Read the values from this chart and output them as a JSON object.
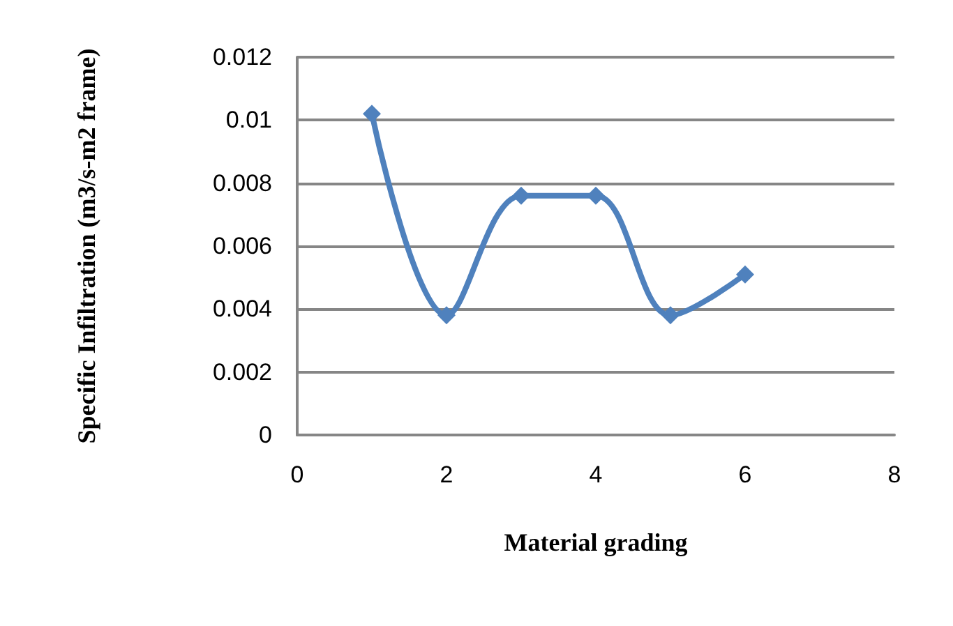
{
  "chart_data": {
    "type": "line",
    "xlabel": "Material grading",
    "ylabel": "Specific Infiltration (m3/s-m2 frame)",
    "x": [
      1,
      2,
      3,
      4,
      5,
      6
    ],
    "series": [
      {
        "color": "#4f81bd",
        "values": [
          0.0102,
          0.0038,
          0.0076,
          0.0076,
          0.0038,
          0.0051
        ]
      }
    ],
    "xlim": [
      0,
      8
    ],
    "xticks": [
      0,
      2,
      4,
      6,
      8
    ],
    "ylim": [
      0,
      0.012
    ],
    "yticks": [
      0,
      0.002,
      0.004,
      0.006,
      0.008,
      0.01,
      0.012
    ],
    "grid": "y",
    "marker": "diamond",
    "line_style": "solid"
  }
}
